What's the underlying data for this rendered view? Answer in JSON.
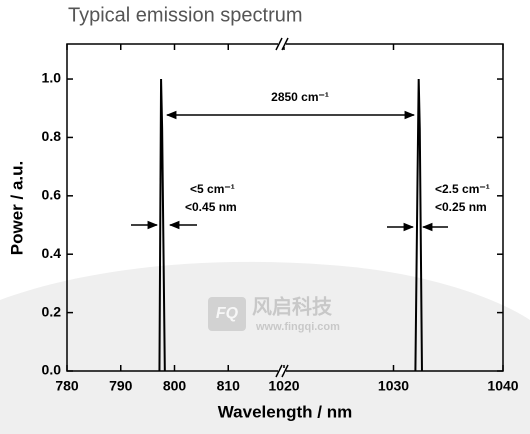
{
  "chart_data": {
    "type": "line",
    "title": "Typical emission spectrum",
    "xlabel": "Wavelength / nm",
    "ylabel": "Power / a.u.",
    "x_segments": [
      {
        "xlim": [
          780,
          820
        ],
        "xticks": [
          780,
          790,
          800,
          810
        ]
      },
      {
        "xlim": [
          1020,
          1040
        ],
        "xticks": [
          1020,
          1030,
          1040
        ]
      }
    ],
    "ylim": [
      0,
      1.12
    ],
    "yticks": [
      {
        "value": 0,
        "label": "0.0"
      },
      0.2,
      0.4,
      0.6,
      0.8,
      {
        "value": 1,
        "label": "1.0"
      }
    ],
    "series": [
      {
        "color": "#000000",
        "x": [
          797.2,
          797.5,
          797.7,
          798.2,
          null,
          1032.0,
          1032.2,
          1032.3,
          1032.4,
          1032.6
        ],
        "values": [
          0,
          1.0,
          0.83,
          0,
          null,
          0,
          0.68,
          1.0,
          0.83,
          0
        ]
      }
    ],
    "annotations": [
      "2850 cm⁻¹",
      "<5 cm⁻¹",
      "<0.45 nm",
      "<2.5 cm⁻¹",
      "<0.25 nm"
    ],
    "watermark": {
      "logo": "FQ",
      "name": "风启科技",
      "url": "www.fingqi.com"
    }
  }
}
